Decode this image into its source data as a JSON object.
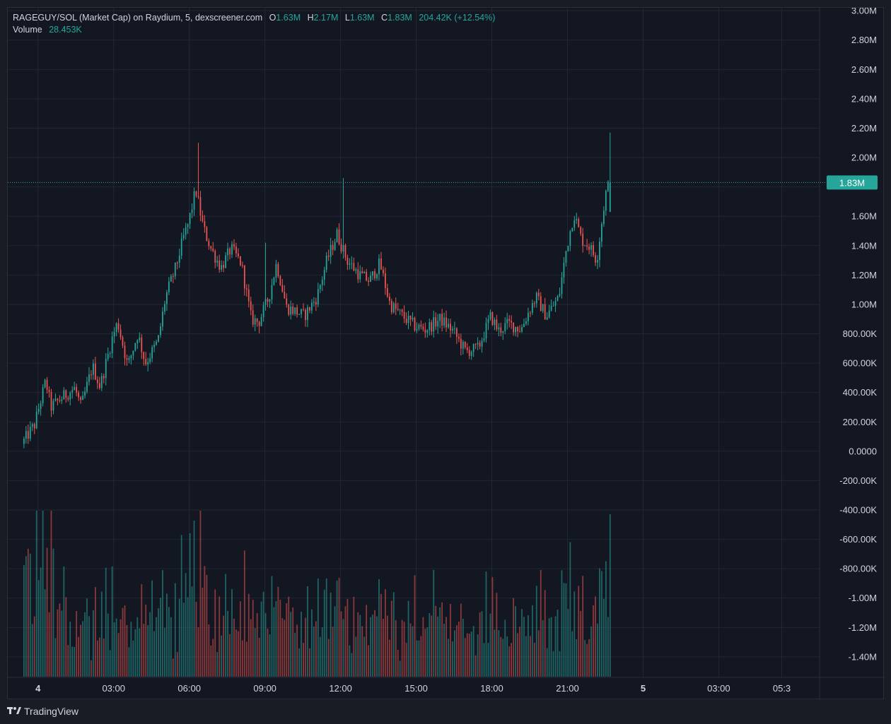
{
  "legend": {
    "title": "RAGEGUY/SOL (Market Cap) on Raydium, 5, dexscreener.com",
    "open_label": "O",
    "open": "1.63M",
    "high_label": "H",
    "high": "2.17M",
    "low_label": "L",
    "low": "1.63M",
    "close_label": "C",
    "close": "1.83M",
    "change": "204.42K (+12.54%)",
    "volume_label": "Volume",
    "volume": "28.453K"
  },
  "last_price": {
    "label": "1.83M",
    "value": 1830000
  },
  "footer": {
    "logo": "TradingView"
  },
  "colors": {
    "background": "#131722",
    "grid": "#232733",
    "up": "#26a69a",
    "down": "#ef5350",
    "text": "#d1d4dc"
  },
  "chart_data": {
    "type": "candlestick",
    "y_axis": {
      "ticks": [
        3000000,
        2800000,
        2600000,
        2400000,
        2200000,
        2000000,
        1800000,
        1600000,
        1400000,
        1200000,
        1000000,
        800000,
        600000,
        400000,
        200000,
        0,
        -200000,
        -400000,
        -600000,
        -800000,
        -1000000,
        -1200000,
        -1400000
      ],
      "tick_labels": [
        "3.00M",
        "2.80M",
        "2.60M",
        "2.40M",
        "2.20M",
        "2.00M",
        "",
        "1.60M",
        "1.40M",
        "1.20M",
        "1.00M",
        "800.00K",
        "600.00K",
        "400.00K",
        "200.00K",
        "0.0000",
        "-200.00K",
        "-400.00K",
        "-600.00K",
        "-800.00K",
        "-1.00M",
        "-1.20M",
        "-1.40M"
      ],
      "range": [
        -1540000,
        3020000
      ]
    },
    "x_axis": {
      "ticks": [
        0,
        3,
        6,
        9,
        12,
        15,
        18,
        21,
        24,
        27,
        29.5
      ],
      "tick_labels": [
        "4",
        "03:00",
        "06:00",
        "09:00",
        "12:00",
        "15:00",
        "18:00",
        "21:00",
        "5",
        "03:00",
        "05:3"
      ],
      "unit": "hours from day 4 00:00",
      "range": [
        -1.2,
        31
      ]
    },
    "price_anchors": [
      [
        -0.6,
        0.05
      ],
      [
        -0.1,
        0.18
      ],
      [
        0.35,
        0.48
      ],
      [
        0.55,
        0.3
      ],
      [
        1.1,
        0.38
      ],
      [
        1.5,
        0.43
      ],
      [
        1.75,
        0.3
      ],
      [
        2.2,
        0.58
      ],
      [
        2.5,
        0.44
      ],
      [
        3.0,
        0.78
      ],
      [
        3.2,
        0.88
      ],
      [
        3.6,
        0.58
      ],
      [
        4.0,
        0.8
      ],
      [
        4.3,
        0.6
      ],
      [
        4.8,
        0.75
      ],
      [
        5.1,
        1.05
      ],
      [
        5.5,
        1.25
      ],
      [
        5.8,
        1.45
      ],
      [
        6.0,
        1.55
      ],
      [
        6.3,
        1.78
      ],
      [
        6.6,
        1.52
      ],
      [
        6.9,
        1.38
      ],
      [
        7.3,
        1.25
      ],
      [
        7.7,
        1.38
      ],
      [
        8.1,
        1.28
      ],
      [
        8.5,
        0.9
      ],
      [
        8.8,
        0.88
      ],
      [
        9.2,
        1.05
      ],
      [
        9.5,
        1.28
      ],
      [
        9.9,
        0.98
      ],
      [
        10.3,
        0.95
      ],
      [
        10.6,
        0.92
      ],
      [
        11.1,
        1.05
      ],
      [
        11.5,
        1.3
      ],
      [
        11.9,
        1.48
      ],
      [
        12.3,
        1.3
      ],
      [
        12.8,
        1.2
      ],
      [
        13.2,
        1.16
      ],
      [
        13.6,
        1.28
      ],
      [
        14.0,
        1.0
      ],
      [
        14.5,
        0.92
      ],
      [
        15.0,
        0.85
      ],
      [
        15.4,
        0.83
      ],
      [
        16.0,
        0.9
      ],
      [
        16.5,
        0.82
      ],
      [
        17.0,
        0.68
      ],
      [
        17.5,
        0.7
      ],
      [
        18.0,
        0.92
      ],
      [
        18.3,
        0.82
      ],
      [
        18.7,
        0.87
      ],
      [
        19.2,
        0.83
      ],
      [
        19.5,
        0.95
      ],
      [
        19.8,
        1.05
      ],
      [
        20.2,
        0.92
      ],
      [
        20.7,
        1.05
      ],
      [
        21.0,
        1.38
      ],
      [
        21.3,
        1.62
      ],
      [
        21.6,
        1.44
      ],
      [
        21.9,
        1.4
      ],
      [
        22.2,
        1.3
      ],
      [
        22.55,
        1.75
      ],
      [
        22.7,
        1.83
      ]
    ],
    "candle_interval_minutes": 5,
    "series": [
      {
        "name": "Volume",
        "type": "histogram"
      }
    ],
    "last_value": 1830000,
    "grid": true
  }
}
